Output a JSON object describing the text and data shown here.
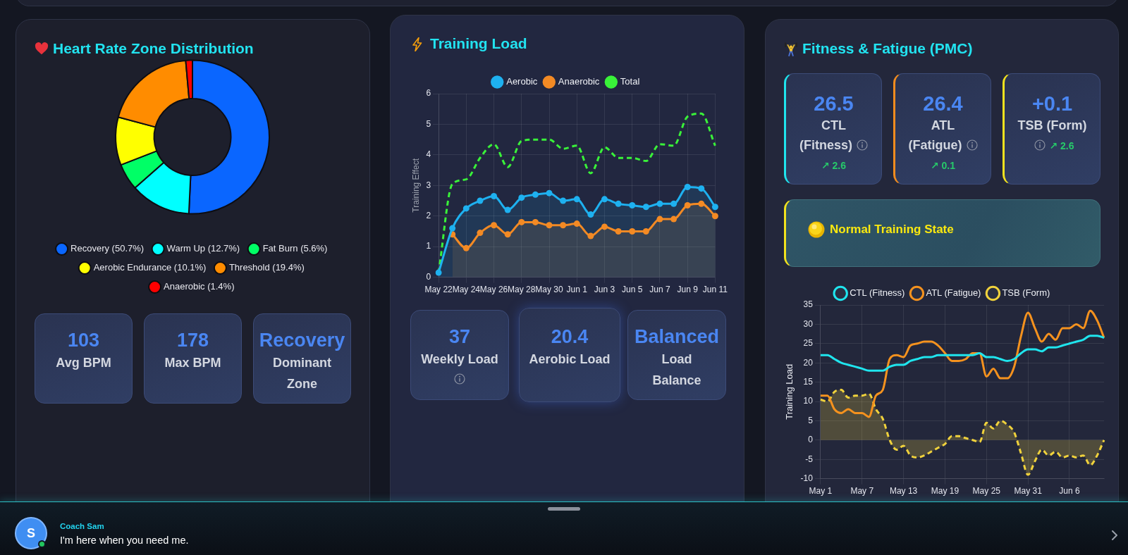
{
  "chart_data": [
    {
      "type": "donut",
      "title": "Heart Rate Zone Distribution",
      "categories": [
        "Recovery (50.7%)",
        "Warm Up (12.7%)",
        "Fat Burn (5.6%)",
        "Aerobic Endurance (10.1%)",
        "Threshold (19.4%)",
        "Anaerobic (1.4%)"
      ],
      "values": [
        50.7,
        12.7,
        5.6,
        10.1,
        19.4,
        1.4
      ],
      "colors": [
        "#0a66ff",
        "#00ffff",
        "#00ff66",
        "#ffff00",
        "#ff8c00",
        "#ff0000"
      ],
      "legend": "bottom"
    },
    {
      "type": "other",
      "annotations": [
        "103",
        "Avg BPM",
        "178",
        "Max BPM",
        "Recovery",
        "Dominant Zone"
      ]
    },
    {
      "type": "line",
      "title": "Training Load",
      "ylabel": "Training Effect",
      "categories": [
        "May 22",
        null,
        "May 24",
        null,
        "May 26",
        null,
        "May 28",
        null,
        "May 30",
        null,
        "Jun 1",
        null,
        "Jun 3",
        null,
        "Jun 5",
        null,
        "Jun 7",
        null,
        "Jun 9",
        null,
        "Jun 11"
      ],
      "series": [
        {
          "name": "Aerobic",
          "type": "area",
          "color": "#1eb1f0",
          "values": [
            0.15,
            1.6,
            2.25,
            2.5,
            2.65,
            2.2,
            2.6,
            2.7,
            2.75,
            2.5,
            2.55,
            2.05,
            2.55,
            2.4,
            2.35,
            2.3,
            2.4,
            2.4,
            2.95,
            2.9,
            2.3
          ]
        },
        {
          "name": "Anaerobic",
          "type": "area",
          "color": "#f38a24",
          "values": [
            null,
            1.4,
            0.95,
            1.45,
            1.7,
            1.4,
            1.8,
            1.8,
            1.7,
            1.7,
            1.75,
            1.35,
            1.65,
            1.5,
            1.5,
            1.5,
            1.9,
            1.9,
            2.35,
            2.4,
            2.0
          ]
        },
        {
          "name": "Total",
          "type": "line",
          "color": "#39f239",
          "line_style": "dashed",
          "marker": "none",
          "values": [
            0.15,
            3.05,
            3.2,
            3.9,
            4.35,
            3.6,
            4.45,
            4.5,
            4.5,
            4.2,
            4.3,
            3.4,
            4.25,
            3.9,
            3.9,
            3.8,
            4.35,
            4.3,
            5.25,
            5.35,
            4.3
          ]
        }
      ],
      "ylim": [
        0,
        6
      ],
      "yticks": [
        0,
        1,
        2,
        3,
        4,
        5,
        6
      ],
      "grid": true,
      "legend": "top",
      "marker": "circle"
    },
    {
      "type": "other",
      "annotations": [
        "37",
        "Weekly Load",
        "20.4",
        "Aerobic Load",
        "Balanced",
        "Load Balance"
      ]
    },
    {
      "type": "other",
      "title": "Fitness & Fatigue (PMC)",
      "annotations": [
        "26.5",
        "CTL (Fitness)",
        "↗ 2.6",
        "26.4",
        "ATL (Fatigue)",
        "↗ 0.1",
        "+0.1",
        "TSB (Form)",
        "↗ 2.6",
        "Normal Training State"
      ]
    },
    {
      "type": "line",
      "ylabel": "Training Load",
      "categories": [
        "May 1",
        null,
        null,
        null,
        null,
        null,
        "May 7",
        null,
        null,
        null,
        null,
        null,
        "May 13",
        null,
        null,
        null,
        null,
        null,
        "May 19",
        null,
        null,
        null,
        null,
        null,
        "May 25",
        null,
        null,
        null,
        null,
        null,
        "May 31",
        null,
        null,
        null,
        null,
        null,
        "Jun 6",
        null,
        null,
        null,
        null,
        null
      ],
      "series": [
        {
          "name": "CTL (Fitness)",
          "type": "line",
          "color": "#1fe5ee",
          "values": [
            22,
            22,
            21,
            20,
            19.5,
            19,
            18.5,
            18,
            18,
            18,
            19,
            19.5,
            19.5,
            20.5,
            21,
            21.5,
            21.5,
            22,
            22,
            22,
            22,
            22,
            22,
            22.5,
            21.5,
            21.5,
            21,
            20.5,
            21,
            22.5,
            23.5,
            23.5,
            23,
            24,
            24,
            24.5,
            25,
            25.5,
            26,
            27,
            27,
            26.5
          ]
        },
        {
          "name": "ATL (Fatigue)",
          "type": "line",
          "color": "#f5921e",
          "values": [
            11.5,
            11.5,
            8,
            7,
            8,
            7,
            7,
            6,
            11.5,
            13,
            21,
            22,
            21.5,
            24.5,
            25,
            25.5,
            25.5,
            24.5,
            22.5,
            20.5,
            20.5,
            21,
            22.5,
            22.5,
            16.5,
            18.5,
            16,
            16,
            19,
            27,
            33,
            29,
            25.5,
            27.5,
            26,
            29,
            29,
            30,
            29,
            33.5,
            31,
            26.5
          ]
        },
        {
          "name": "TSB (Form)",
          "type": "area",
          "color": "#f0d23c",
          "line_style": "dashed",
          "values": [
            10.5,
            10,
            12.5,
            13,
            11,
            11.5,
            11.5,
            12,
            8,
            5.5,
            0,
            -2.5,
            -1.5,
            -4,
            -4.5,
            -4,
            -3,
            -2,
            -1,
            1,
            1,
            0.5,
            0,
            -0.5,
            4.5,
            3,
            5,
            4,
            2,
            -3.5,
            -9,
            -5.5,
            -2.5,
            -4,
            -3,
            -4.5,
            -4,
            -4.5,
            -4,
            -6.5,
            -4,
            0
          ]
        }
      ],
      "ylim": [
        -10,
        35
      ],
      "yticks": [
        -10,
        -5,
        0,
        5,
        10,
        15,
        20,
        25,
        30,
        35
      ],
      "grid": true,
      "legend": "top",
      "marker": "none"
    },
    {
      "type": "other",
      "annotations": [
        "S",
        "Coach Sam",
        "I'm here when you need me."
      ]
    }
  ]
}
